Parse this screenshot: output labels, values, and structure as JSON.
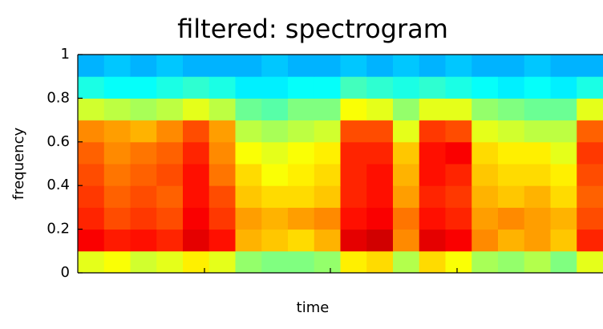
{
  "chart_data": {
    "type": "heatmap",
    "title": "filtered: spectrogram",
    "xlabel": "time",
    "ylabel": "frequency",
    "ylim": [
      0,
      1
    ],
    "yticks": [
      0,
      0.2,
      0.4,
      0.6,
      0.8,
      1
    ],
    "colormap": "jet",
    "clim": [
      0,
      1
    ],
    "values": [
      [
        0.6,
        0.62,
        0.58,
        0.6,
        0.64,
        0.6,
        0.52,
        0.5,
        0.5,
        0.52,
        0.64,
        0.66,
        0.55,
        0.66,
        0.62,
        0.54,
        0.52,
        0.55,
        0.5,
        0.6
      ],
      [
        0.88,
        0.85,
        0.86,
        0.84,
        0.9,
        0.86,
        0.7,
        0.68,
        0.66,
        0.7,
        0.9,
        0.92,
        0.74,
        0.9,
        0.88,
        0.74,
        0.7,
        0.72,
        0.68,
        0.84
      ],
      [
        0.84,
        0.8,
        0.82,
        0.8,
        0.88,
        0.82,
        0.72,
        0.7,
        0.72,
        0.74,
        0.86,
        0.88,
        0.76,
        0.86,
        0.84,
        0.72,
        0.74,
        0.72,
        0.7,
        0.8
      ],
      [
        0.82,
        0.78,
        0.8,
        0.78,
        0.86,
        0.8,
        0.68,
        0.66,
        0.66,
        0.68,
        0.84,
        0.86,
        0.72,
        0.84,
        0.82,
        0.7,
        0.68,
        0.7,
        0.66,
        0.78
      ],
      [
        0.8,
        0.76,
        0.78,
        0.8,
        0.86,
        0.76,
        0.66,
        0.62,
        0.64,
        0.66,
        0.84,
        0.86,
        0.7,
        0.86,
        0.84,
        0.68,
        0.66,
        0.66,
        0.64,
        0.8
      ],
      [
        0.78,
        0.74,
        0.76,
        0.78,
        0.84,
        0.74,
        0.62,
        0.6,
        0.62,
        0.64,
        0.84,
        0.84,
        0.68,
        0.86,
        0.88,
        0.66,
        0.64,
        0.64,
        0.6,
        0.82
      ],
      [
        0.74,
        0.72,
        0.7,
        0.74,
        0.8,
        0.72,
        0.56,
        0.54,
        0.56,
        0.58,
        0.8,
        0.8,
        0.6,
        0.82,
        0.8,
        0.6,
        0.58,
        0.56,
        0.56,
        0.78
      ],
      [
        0.58,
        0.56,
        0.54,
        0.56,
        0.6,
        0.56,
        0.48,
        0.46,
        0.5,
        0.5,
        0.62,
        0.6,
        0.52,
        0.6,
        0.6,
        0.52,
        0.5,
        0.48,
        0.48,
        0.6
      ],
      [
        0.4,
        0.38,
        0.38,
        0.4,
        0.42,
        0.4,
        0.36,
        0.36,
        0.38,
        0.38,
        0.44,
        0.42,
        0.4,
        0.42,
        0.4,
        0.38,
        0.36,
        0.38,
        0.36,
        0.4
      ],
      [
        0.3,
        0.32,
        0.3,
        0.32,
        0.3,
        0.3,
        0.3,
        0.32,
        0.3,
        0.3,
        0.32,
        0.3,
        0.32,
        0.3,
        0.32,
        0.3,
        0.3,
        0.32,
        0.3,
        0.3
      ]
    ]
  }
}
